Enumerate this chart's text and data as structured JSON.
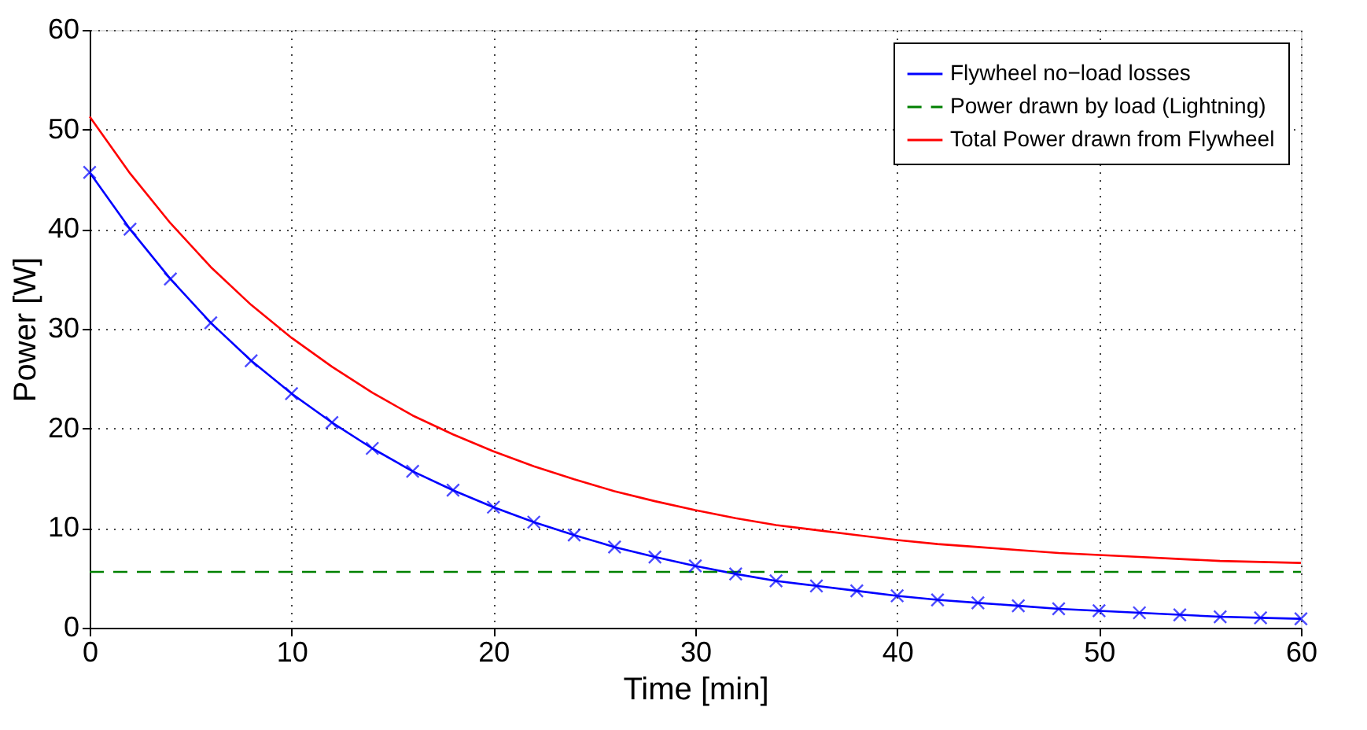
{
  "chart_data": {
    "type": "line",
    "xlabel": "Time [min]",
    "ylabel": "Power [W]",
    "xlim": [
      0,
      60
    ],
    "ylim": [
      0,
      60
    ],
    "xticks": [
      0,
      10,
      20,
      30,
      40,
      50,
      60
    ],
    "yticks": [
      0,
      10,
      20,
      30,
      40,
      50,
      60
    ],
    "grid": true,
    "legend": "top right",
    "x": [
      0,
      2,
      4,
      6,
      8,
      10,
      12,
      14,
      16,
      18,
      20,
      22,
      24,
      26,
      28,
      30,
      32,
      34,
      36,
      38,
      40,
      42,
      44,
      46,
      48,
      50,
      52,
      54,
      56,
      58,
      60
    ],
    "series": [
      {
        "name": "Flywheel no−load losses",
        "color": "#0000ff",
        "marker": "cross",
        "line_style": "solid",
        "values": [
          45.7,
          40,
          35,
          30.6,
          26.8,
          23.5,
          20.6,
          18,
          15.7,
          13.8,
          12.1,
          10.6,
          9.3,
          8.1,
          7.1,
          6.2,
          5.4,
          4.7,
          4.2,
          3.7,
          3.2,
          2.8,
          2.5,
          2.2,
          1.9,
          1.7,
          1.5,
          1.3,
          1.1,
          1.0,
          0.9
        ]
      },
      {
        "name": "Power drawn by load (Lightning)",
        "color": "#008000",
        "marker": "none",
        "line_style": "dashed",
        "x": [
          0,
          60
        ],
        "values": [
          5.6,
          5.6
        ]
      },
      {
        "name": "Total Power drawn from Flywheel",
        "color": "#ff0000",
        "marker": "none",
        "line_style": "solid",
        "values": [
          51.3,
          45.6,
          40.6,
          36.2,
          32.4,
          29.1,
          26.2,
          23.6,
          21.3,
          19.4,
          17.7,
          16.2,
          14.9,
          13.7,
          12.7,
          11.8,
          11.0,
          10.3,
          9.8,
          9.3,
          8.8,
          8.4,
          8.1,
          7.8,
          7.5,
          7.3,
          7.1,
          6.9,
          6.7,
          6.6,
          6.5
        ]
      }
    ]
  }
}
